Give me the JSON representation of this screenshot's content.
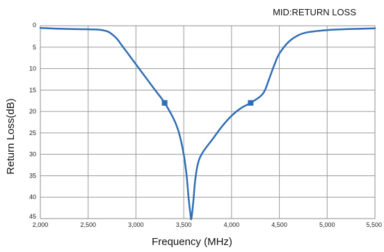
{
  "chart_data": {
    "type": "line",
    "title": "MID:RETURN LOSS",
    "xlabel": "Frequency (MHz)",
    "ylabel": "Return Loss(dB)",
    "xlim": [
      2000,
      5500
    ],
    "ylim": [
      45,
      0
    ],
    "y_inverted": true,
    "grid": true,
    "x_tick_labels": [
      "2,000",
      "2,500",
      "3,000",
      "3,500",
      "4,000",
      "4,500",
      "5,000",
      "5,500"
    ],
    "x_ticks": [
      2000,
      2500,
      3000,
      3500,
      4000,
      4500,
      5000,
      5500
    ],
    "y_tick_labels": [
      "0",
      "5",
      "10",
      "15",
      "20",
      "25",
      "30",
      "35",
      "40",
      "45"
    ],
    "y_ticks": [
      0,
      5,
      10,
      15,
      20,
      25,
      30,
      35,
      40,
      45
    ],
    "colors": {
      "line": "#2f6db5",
      "grid": "#9a9a9a",
      "frame": "#8c8c8c"
    },
    "series": [
      {
        "x": [
          2000,
          2200,
          2400,
          2600,
          2700,
          2750,
          2800,
          2850,
          2900,
          2950,
          3000,
          3100,
          3200,
          3300,
          3400,
          3450,
          3500,
          3530,
          3550,
          3570,
          3580,
          3600,
          3620,
          3650,
          3700,
          3800,
          3900,
          4000,
          4100,
          4200,
          4300,
          4350,
          4400,
          4450,
          4500,
          4600,
          4700,
          4800,
          5000,
          5200,
          5500
        ],
        "y": [
          0.5,
          0.7,
          0.8,
          0.9,
          1.3,
          2.0,
          3.0,
          4.5,
          6.0,
          7.5,
          9.0,
          12.0,
          15.0,
          18.0,
          22.0,
          25.0,
          30.0,
          35.0,
          40.0,
          44.0,
          45.0,
          41.0,
          36.0,
          32.0,
          29.5,
          26.5,
          23.5,
          21.0,
          19.2,
          18.0,
          16.5,
          15.0,
          12.0,
          9.0,
          6.5,
          3.7,
          2.2,
          1.5,
          1.0,
          0.8,
          0.6
        ]
      }
    ],
    "markers": [
      {
        "x": 3300,
        "y": 18.0
      },
      {
        "x": 4200,
        "y": 18.0
      }
    ]
  }
}
